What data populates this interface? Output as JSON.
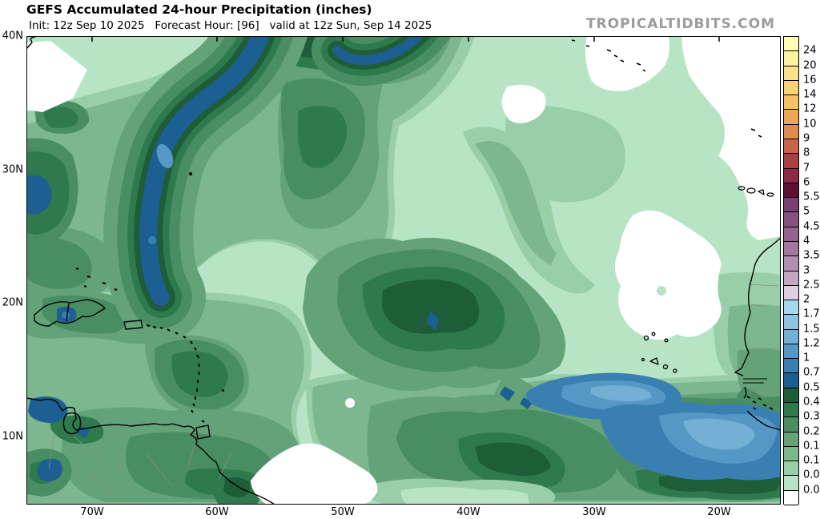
{
  "header": {
    "title": "GEFS Accumulated 24-hour Precipitation (inches)",
    "subtitle": "Init: 12z Sep 10 2025   Forecast Hour: [96]   valid at 12z Sun, Sep 14 2025",
    "watermark": "TROPICALTIDBITS.COM"
  },
  "axes": {
    "lat_labels": [
      "40N",
      "30N",
      "20N",
      "10N"
    ],
    "lon_labels": [
      "70W",
      "60W",
      "50W",
      "40W",
      "30W",
      "20W"
    ]
  },
  "legend": {
    "units": "inches",
    "values": [
      "24",
      "20",
      "16",
      "14",
      "12",
      "10",
      "9",
      "8",
      "7",
      "6",
      "5.5",
      "5",
      "4.5",
      "4",
      "3.5",
      "3",
      "2.5",
      "2",
      "1.75",
      "1.5",
      "1.25",
      "1",
      "0.75",
      "0.5",
      "0.4",
      "0.3",
      "0.2",
      "0.15",
      "0.1",
      "0.05",
      "0.01"
    ],
    "colors": [
      "#ffffb3",
      "#fcf2a2",
      "#f9e28b",
      "#f7d276",
      "#f5c166",
      "#eea65a",
      "#df8a52",
      "#c6654b",
      "#a94144",
      "#8c2946",
      "#5c1134",
      "#7a3f73",
      "#86517f",
      "#94648f",
      "#a377a0",
      "#b28eb0",
      "#c4a8c2",
      "#e0cede",
      "#a5d8ec",
      "#8dc5e1",
      "#74b0d5",
      "#5598c5",
      "#3a7fb2",
      "#1d5f93",
      "#1d5d38",
      "#2f7a4d",
      "#498d63",
      "#63a377",
      "#7cb78f",
      "#98cfa8",
      "#b6e4c4",
      "#ffffff"
    ]
  },
  "palette": {
    "L1": "#b6e4c4",
    "L2": "#98cfa8",
    "L3": "#7cb78f",
    "L4": "#63a377",
    "L5": "#498d63",
    "L6": "#2f7a4d",
    "L7": "#1d5d38",
    "B1": "#1d5f93",
    "B2": "#3a7fb2",
    "B3": "#5598c5",
    "B4": "#74b0d5",
    "B5": "#8dc5e1",
    "W": "#ffffff",
    "coast": "#000000",
    "border_minor": "#8a8a8a"
  },
  "chart_data": {
    "type": "heatmap",
    "title": "GEFS Accumulated 24-hour Precipitation (inches)",
    "model": "GEFS",
    "init": "12z Sep 10 2025",
    "forecast_hour": "[96]",
    "valid": "12z Sun, Sep 14 2025",
    "region": "Tropical Atlantic (40N-8N, 75W-15W)",
    "scale_values_inches": [
      24,
      20,
      16,
      14,
      12,
      10,
      9,
      8,
      7,
      6,
      5.5,
      5,
      4.5,
      4,
      3.5,
      3,
      2.5,
      2,
      1.75,
      1.5,
      1.25,
      1,
      0.75,
      0.5,
      0.4,
      0.3,
      0.2,
      0.15,
      0.1,
      0.05,
      0.01
    ],
    "notable_features": [
      "elongated 0.5-1.25 inch band arcing from 40N/52W southwest to 23N/62W",
      "0.4-0.75 inch core near 18N/47W",
      "0.75-1.5 inch maxima along ITCZ near 11N/27W and 9N/20W off West Africa",
      "dry (<0.01 inch) areas near Azores, east-central subtropics and 6N/55W"
    ]
  }
}
